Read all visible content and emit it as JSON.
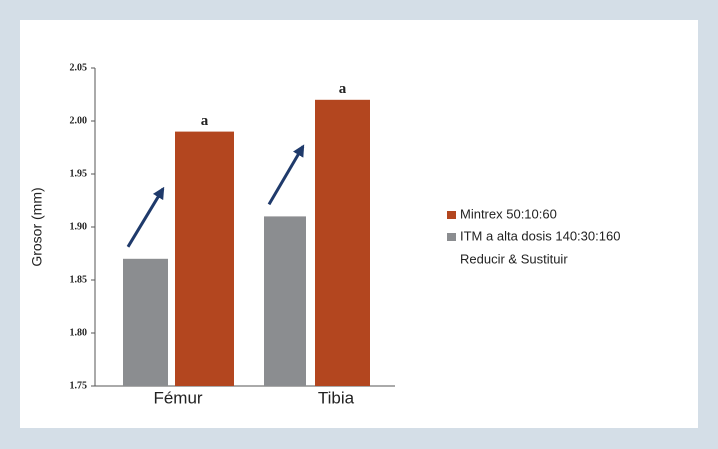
{
  "chart_data": {
    "type": "bar",
    "y_label": "Grosor (mm)",
    "categories": [
      "Fémur",
      "Tibia"
    ],
    "series": [
      {
        "name": "Mintrex 50:10:60",
        "color": "#b3461f",
        "values": [
          1.99,
          2.02
        ]
      },
      {
        "name": "ITM a alta dosis 140:30:160",
        "color": "#8b8d90",
        "values": [
          1.87,
          1.91
        ]
      }
    ],
    "legend_note": "Reducir & Sustituir",
    "annotations": [
      "a",
      "a"
    ],
    "ylim": [
      1.75,
      2.05
    ],
    "yticks": [
      1.75,
      {
        "value": 1.8,
        "label": "1.80"
      },
      1.85,
      {
        "value": 1.9,
        "label": "1.90"
      },
      1.95,
      {
        "value": 2.0,
        "label": "2.00"
      },
      2.05
    ],
    "grid": false
  }
}
